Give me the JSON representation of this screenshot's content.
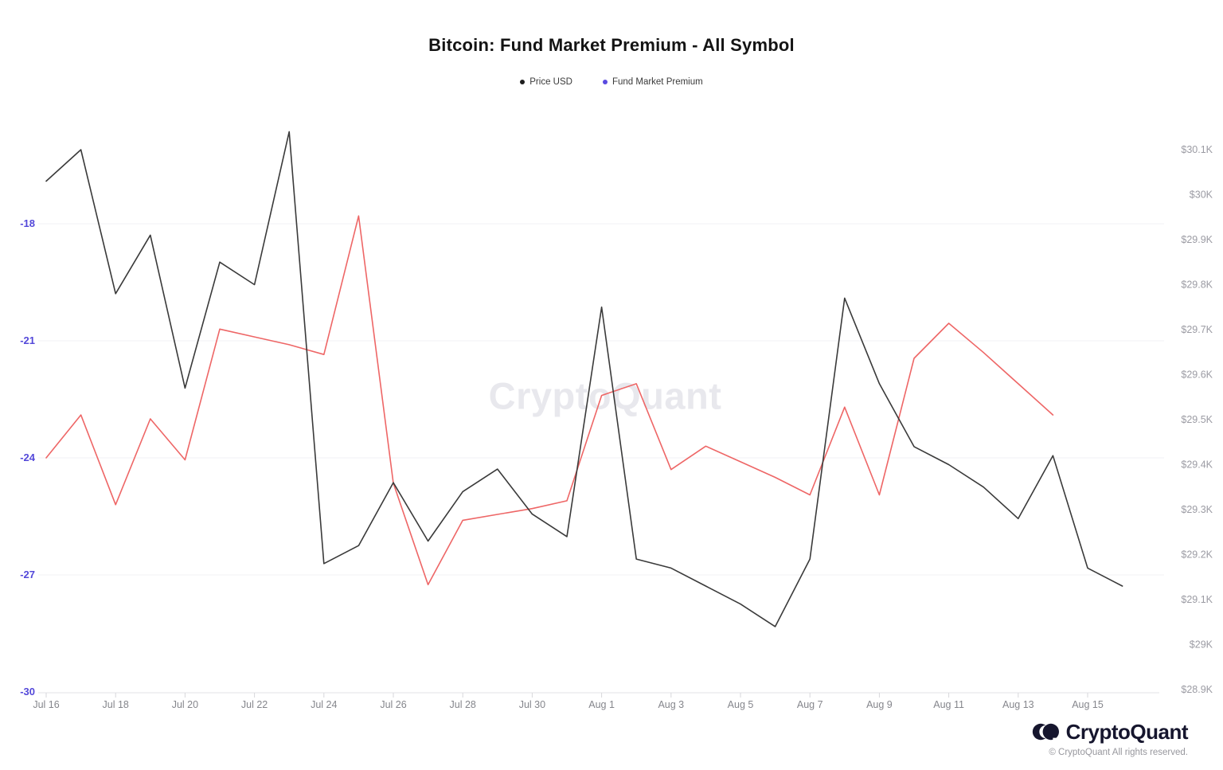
{
  "header": {
    "title": "Bitcoin: Fund Market Premium - All Symbol"
  },
  "legend": {
    "items": [
      {
        "label": "Price USD",
        "color": "#1e1e1e"
      },
      {
        "label": "Fund Market Premium",
        "color": "#5a4be0"
      }
    ]
  },
  "watermark": "CryptoQuant",
  "footer": {
    "brand": "CryptoQuant",
    "copyright": "© CryptoQuant All rights reserved."
  },
  "chart_data": {
    "type": "line",
    "title": "Bitcoin: Fund Market Premium - All Symbol",
    "legend_position": "top center",
    "grid": "horizontal gridlines for left axis only",
    "x_dates": [
      "Jul 16",
      "Jul 17",
      "Jul 18",
      "Jul 19",
      "Jul 20",
      "Jul 21",
      "Jul 22",
      "Jul 23",
      "Jul 24",
      "Jul 25",
      "Jul 26",
      "Jul 27",
      "Jul 28",
      "Jul 29",
      "Jul 30",
      "Jul 31",
      "Aug 1",
      "Aug 2",
      "Aug 3",
      "Aug 4",
      "Aug 5",
      "Aug 6",
      "Aug 7",
      "Aug 8",
      "Aug 9",
      "Aug 10",
      "Aug 11",
      "Aug 12",
      "Aug 13",
      "Aug 14",
      "Aug 15",
      "Aug 16"
    ],
    "x_axis": {
      "ticks": [
        {
          "label": "Jul 16",
          "day": 0
        },
        {
          "label": "Jul 18",
          "day": 2
        },
        {
          "label": "Jul 20",
          "day": 4
        },
        {
          "label": "Jul 22",
          "day": 6
        },
        {
          "label": "Jul 24",
          "day": 8
        },
        {
          "label": "Jul 26",
          "day": 10
        },
        {
          "label": "Jul 28",
          "day": 12
        },
        {
          "label": "Jul 30",
          "day": 14
        },
        {
          "label": "Aug 1",
          "day": 16
        },
        {
          "label": "Aug 3",
          "day": 18
        },
        {
          "label": "Aug 5",
          "day": 20
        },
        {
          "label": "Aug 7",
          "day": 22
        },
        {
          "label": "Aug 9",
          "day": 24
        },
        {
          "label": "Aug 11",
          "day": 26
        },
        {
          "label": "Aug 13",
          "day": 28
        },
        {
          "label": "Aug 15",
          "day": 30
        }
      ]
    },
    "left_axis": {
      "label_color": "#5348d9",
      "range": [
        -30,
        -18
      ],
      "ticks": [
        {
          "label": "-18",
          "value": -18
        },
        {
          "label": "-21",
          "value": -21
        },
        {
          "label": "-24",
          "value": -24
        },
        {
          "label": "-27",
          "value": -27
        },
        {
          "label": "-30",
          "value": -30
        }
      ]
    },
    "right_axis": {
      "label_color": "#9b9ba3",
      "range": [
        28.9,
        30.1
      ],
      "ticks": [
        {
          "label": "$30.1K",
          "value": 30.1
        },
        {
          "label": "$30K",
          "value": 30.0
        },
        {
          "label": "$29.9K",
          "value": 29.9
        },
        {
          "label": "$29.8K",
          "value": 29.8
        },
        {
          "label": "$29.7K",
          "value": 29.7
        },
        {
          "label": "$29.6K",
          "value": 29.6
        },
        {
          "label": "$29.5K",
          "value": 29.5
        },
        {
          "label": "$29.4K",
          "value": 29.4
        },
        {
          "label": "$29.3K",
          "value": 29.3
        },
        {
          "label": "$29.2K",
          "value": 29.2
        },
        {
          "label": "$29.1K",
          "value": 29.1
        },
        {
          "label": "$29K",
          "value": 29.0
        },
        {
          "label": "$28.9K",
          "value": 28.9
        }
      ]
    },
    "series": [
      {
        "name": "Fund Market Premium",
        "axis": "left",
        "color": "#ee6666",
        "values": [
          -24.0,
          -22.9,
          -25.2,
          -23.0,
          -24.05,
          -20.7,
          -20.9,
          -21.1,
          -21.35,
          -17.8,
          -24.65,
          -27.25,
          -25.6,
          -25.45,
          -25.3,
          -25.1,
          -22.4,
          -22.1,
          -24.3,
          -23.7,
          -24.1,
          -24.5,
          -24.95,
          -22.7,
          -24.95,
          -21.45,
          -20.55,
          -21.3,
          -22.1,
          -22.9,
          null,
          null
        ]
      },
      {
        "name": "Price USD",
        "axis": "right",
        "color": "#3a3a3a",
        "values": [
          30.03,
          30.1,
          29.78,
          29.91,
          29.57,
          29.85,
          29.8,
          30.14,
          29.18,
          29.22,
          29.36,
          29.23,
          29.34,
          29.39,
          29.29,
          29.24,
          29.75,
          29.19,
          29.17,
          29.13,
          29.09,
          29.04,
          29.19,
          29.77,
          29.58,
          29.44,
          29.4,
          29.35,
          29.28,
          29.42,
          29.17,
          29.13
        ]
      }
    ]
  }
}
